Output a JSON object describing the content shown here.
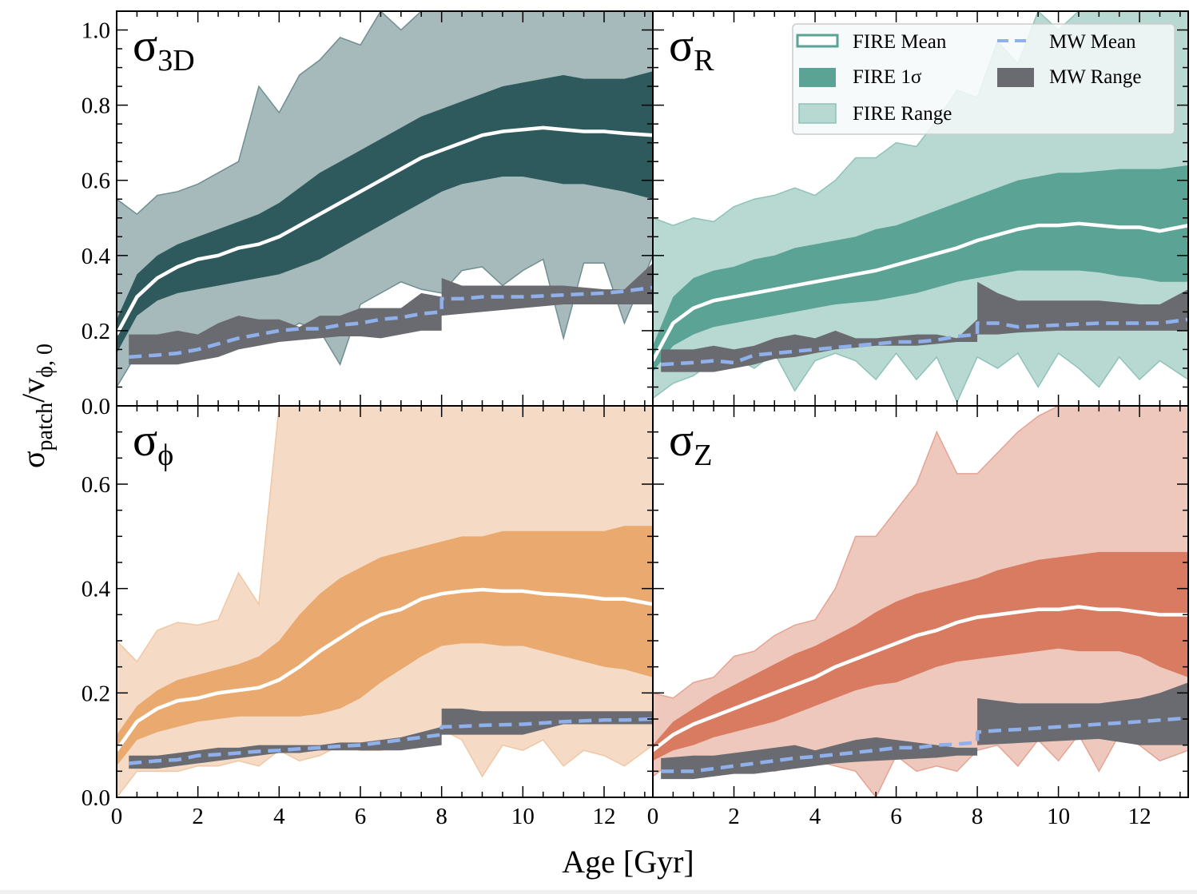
{
  "figure": {
    "xlabel": "Age [Gyr]",
    "ylabel_main": "σ",
    "ylabel_sub": "patch",
    "ylabel_rest": "/v",
    "ylabel_rest_sub": "ϕ, 0"
  },
  "legend": {
    "items": [
      {
        "key": "fire_mean",
        "label": "FIRE Mean"
      },
      {
        "key": "fire_1sigma",
        "label": "FIRE 1σ"
      },
      {
        "key": "fire_range",
        "label": "FIRE Range"
      },
      {
        "key": "mw_mean",
        "label": "MW Mean"
      },
      {
        "key": "mw_range",
        "label": "MW Range"
      }
    ],
    "location": "upper-right of σR panel"
  },
  "colors": {
    "mw_range": "#6a6b70",
    "mw_mean": "#8fb0ea",
    "fire_mean": "#ffffff"
  },
  "chart_data": [
    {
      "type": "area",
      "panel": "sigma_3D",
      "title": "σ",
      "title_sub": "3D",
      "xlim": [
        0,
        13.2
      ],
      "ylim": [
        0,
        1.05
      ],
      "xticks": [
        0,
        2,
        4,
        6,
        8,
        10,
        12
      ],
      "yticks": [
        0.0,
        0.2,
        0.4,
        0.6,
        0.8,
        1.0
      ],
      "ytick_labels": [
        "0.0",
        "0.2",
        "0.4",
        "0.6",
        "0.8",
        "1.0"
      ],
      "colors": {
        "range": "#a6b9bb",
        "range_edge": "#6f8f91",
        "sigma": "#2e5a5d"
      },
      "x": [
        0.0,
        0.5,
        1.0,
        1.5,
        2.0,
        2.5,
        3.0,
        3.5,
        4.0,
        4.5,
        5.0,
        5.5,
        6.0,
        6.5,
        7.0,
        7.5,
        8.0,
        8.5,
        9.0,
        9.5,
        10.0,
        10.5,
        11.0,
        11.5,
        12.0,
        12.5,
        13.2
      ],
      "fire_mean": [
        0.19,
        0.29,
        0.34,
        0.37,
        0.39,
        0.4,
        0.42,
        0.43,
        0.45,
        0.48,
        0.51,
        0.54,
        0.57,
        0.6,
        0.63,
        0.66,
        0.68,
        0.7,
        0.72,
        0.73,
        0.735,
        0.74,
        0.735,
        0.73,
        0.73,
        0.725,
        0.72
      ],
      "fire_lo": [
        0.14,
        0.24,
        0.28,
        0.3,
        0.31,
        0.32,
        0.33,
        0.34,
        0.35,
        0.37,
        0.39,
        0.42,
        0.45,
        0.48,
        0.51,
        0.54,
        0.57,
        0.59,
        0.6,
        0.61,
        0.61,
        0.6,
        0.59,
        0.59,
        0.58,
        0.57,
        0.55
      ],
      "fire_hi": [
        0.23,
        0.35,
        0.4,
        0.43,
        0.45,
        0.47,
        0.49,
        0.51,
        0.54,
        0.58,
        0.62,
        0.65,
        0.68,
        0.71,
        0.74,
        0.77,
        0.79,
        0.81,
        0.83,
        0.85,
        0.86,
        0.87,
        0.88,
        0.87,
        0.87,
        0.87,
        0.89
      ],
      "range_lo": [
        0.05,
        0.14,
        0.15,
        0.16,
        0.17,
        0.17,
        0.18,
        0.19,
        0.19,
        0.22,
        0.2,
        0.11,
        0.27,
        0.3,
        0.33,
        0.31,
        0.3,
        0.36,
        0.37,
        0.32,
        0.36,
        0.39,
        0.18,
        0.38,
        0.38,
        0.22,
        0.4
      ],
      "range_hi": [
        0.55,
        0.51,
        0.56,
        0.57,
        0.59,
        0.62,
        0.65,
        0.85,
        0.78,
        0.88,
        0.92,
        0.98,
        0.96,
        1.05,
        1.0,
        1.05,
        1.05,
        1.05,
        1.05,
        1.05,
        1.05,
        1.05,
        1.05,
        1.05,
        1.05,
        1.05,
        1.05
      ],
      "mw_x": [
        0.3,
        1.0,
        1.5,
        2.0,
        2.5,
        3.0,
        3.5,
        4.0,
        4.5,
        5.0,
        5.5,
        6.0,
        6.5,
        7.0,
        7.5,
        8.0,
        8.0,
        8.5,
        9.0,
        10.0,
        11.0,
        12.0,
        12.5,
        13.2
      ],
      "mw_mean": [
        0.13,
        0.135,
        0.14,
        0.15,
        0.165,
        0.18,
        0.19,
        0.2,
        0.205,
        0.205,
        0.215,
        0.22,
        0.23,
        0.235,
        0.245,
        0.25,
        0.285,
        0.285,
        0.29,
        0.29,
        0.295,
        0.3,
        0.305,
        0.315
      ],
      "mw_lo": [
        0.11,
        0.11,
        0.11,
        0.12,
        0.13,
        0.15,
        0.16,
        0.17,
        0.175,
        0.18,
        0.185,
        0.185,
        0.18,
        0.19,
        0.2,
        0.2,
        0.24,
        0.245,
        0.25,
        0.26,
        0.27,
        0.27,
        0.27,
        0.27
      ],
      "mw_hi": [
        0.19,
        0.19,
        0.2,
        0.19,
        0.22,
        0.24,
        0.23,
        0.23,
        0.21,
        0.24,
        0.24,
        0.26,
        0.26,
        0.26,
        0.3,
        0.29,
        0.34,
        0.32,
        0.32,
        0.32,
        0.32,
        0.31,
        0.31,
        0.38
      ]
    },
    {
      "type": "area",
      "panel": "sigma_R",
      "title": "σ",
      "title_sub": "R",
      "xlim": [
        0,
        13.2
      ],
      "ylim": [
        0,
        1.05
      ],
      "xticks": [
        0,
        2,
        4,
        6,
        8,
        10,
        12
      ],
      "yticks": [
        0.0,
        0.2,
        0.4,
        0.6,
        0.8,
        1.0
      ],
      "colors": {
        "range": "#b8d8d2",
        "range_edge": "#8fc2b8",
        "sigma": "#5ba395"
      },
      "x": [
        0.0,
        0.5,
        1.0,
        1.5,
        2.0,
        2.5,
        3.0,
        3.5,
        4.0,
        4.5,
        5.0,
        5.5,
        6.0,
        6.5,
        7.0,
        7.5,
        8.0,
        8.5,
        9.0,
        9.5,
        10.0,
        10.5,
        11.0,
        11.5,
        12.0,
        12.5,
        13.2
      ],
      "fire_mean": [
        0.12,
        0.22,
        0.26,
        0.28,
        0.29,
        0.3,
        0.31,
        0.32,
        0.33,
        0.34,
        0.35,
        0.36,
        0.375,
        0.39,
        0.405,
        0.42,
        0.44,
        0.455,
        0.47,
        0.48,
        0.48,
        0.485,
        0.48,
        0.475,
        0.475,
        0.465,
        0.48
      ],
      "fire_lo": [
        0.09,
        0.16,
        0.19,
        0.21,
        0.22,
        0.23,
        0.24,
        0.25,
        0.26,
        0.27,
        0.275,
        0.28,
        0.29,
        0.3,
        0.315,
        0.33,
        0.34,
        0.35,
        0.36,
        0.36,
        0.36,
        0.36,
        0.355,
        0.345,
        0.34,
        0.33,
        0.33
      ],
      "fire_hi": [
        0.16,
        0.29,
        0.34,
        0.36,
        0.37,
        0.39,
        0.4,
        0.42,
        0.43,
        0.44,
        0.45,
        0.47,
        0.48,
        0.5,
        0.52,
        0.54,
        0.56,
        0.58,
        0.6,
        0.61,
        0.62,
        0.62,
        0.625,
        0.63,
        0.63,
        0.63,
        0.64
      ],
      "range_lo": [
        0.02,
        0.06,
        0.08,
        0.12,
        0.13,
        0.1,
        0.14,
        0.04,
        0.12,
        0.14,
        0.12,
        0.07,
        0.14,
        0.07,
        0.13,
        0.01,
        0.13,
        0.1,
        0.14,
        0.05,
        0.14,
        0.1,
        0.05,
        0.13,
        0.07,
        0.12,
        0.07
      ],
      "range_hi": [
        0.5,
        0.48,
        0.5,
        0.49,
        0.53,
        0.55,
        0.56,
        0.58,
        0.56,
        0.6,
        0.66,
        0.66,
        0.7,
        0.69,
        0.76,
        0.84,
        0.82,
        0.97,
        0.91,
        1.05,
        1.0,
        1.05,
        1.05,
        1.05,
        1.05,
        1.05,
        1.05
      ],
      "mw_x": [
        0.2,
        1.0,
        1.5,
        2.0,
        2.5,
        3.0,
        3.5,
        4.0,
        4.5,
        5.0,
        5.5,
        6.0,
        6.5,
        7.0,
        7.5,
        8.0,
        8.0,
        8.5,
        9.0,
        10.0,
        11.0,
        12.0,
        12.5,
        13.2
      ],
      "mw_mean": [
        0.11,
        0.115,
        0.12,
        0.115,
        0.135,
        0.14,
        0.145,
        0.15,
        0.155,
        0.16,
        0.165,
        0.17,
        0.17,
        0.175,
        0.185,
        0.19,
        0.22,
        0.22,
        0.21,
        0.215,
        0.22,
        0.22,
        0.22,
        0.23
      ],
      "mw_lo": [
        0.09,
        0.09,
        0.09,
        0.1,
        0.11,
        0.125,
        0.13,
        0.14,
        0.15,
        0.155,
        0.16,
        0.16,
        0.16,
        0.165,
        0.17,
        0.17,
        0.19,
        0.19,
        0.195,
        0.2,
        0.2,
        0.2,
        0.2,
        0.2
      ],
      "mw_hi": [
        0.15,
        0.15,
        0.16,
        0.15,
        0.16,
        0.18,
        0.19,
        0.18,
        0.2,
        0.18,
        0.18,
        0.185,
        0.19,
        0.19,
        0.18,
        0.23,
        0.33,
        0.3,
        0.28,
        0.28,
        0.28,
        0.27,
        0.27,
        0.31
      ]
    },
    {
      "type": "area",
      "panel": "sigma_phi",
      "title": "σ",
      "title_sub": "ϕ",
      "xlim": [
        0,
        13.2
      ],
      "ylim": [
        0,
        0.75
      ],
      "xticks": [
        0,
        2,
        4,
        6,
        8,
        10,
        12
      ],
      "xtick_labels": [
        "0",
        "2",
        "4",
        "6",
        "8",
        "10",
        "12"
      ],
      "yticks": [
        0.0,
        0.2,
        0.4,
        0.6
      ],
      "ytick_labels": [
        "0.0",
        "0.2",
        "0.4",
        "0.6"
      ],
      "colors": {
        "range": "#f5dbc5",
        "range_edge": "#f0c7a5",
        "sigma": "#e9a96f"
      },
      "x": [
        0.0,
        0.5,
        1.0,
        1.5,
        2.0,
        2.5,
        3.0,
        3.5,
        4.0,
        4.5,
        5.0,
        5.5,
        6.0,
        6.5,
        7.0,
        7.5,
        8.0,
        8.5,
        9.0,
        9.5,
        10.0,
        10.5,
        11.0,
        11.5,
        12.0,
        12.5,
        13.2
      ],
      "fire_mean": [
        0.09,
        0.145,
        0.17,
        0.185,
        0.19,
        0.2,
        0.205,
        0.21,
        0.225,
        0.25,
        0.28,
        0.305,
        0.33,
        0.35,
        0.36,
        0.38,
        0.39,
        0.395,
        0.398,
        0.395,
        0.395,
        0.39,
        0.388,
        0.385,
        0.38,
        0.38,
        0.37
      ],
      "fire_lo": [
        0.06,
        0.11,
        0.125,
        0.135,
        0.145,
        0.15,
        0.155,
        0.155,
        0.155,
        0.155,
        0.16,
        0.17,
        0.19,
        0.22,
        0.245,
        0.27,
        0.29,
        0.295,
        0.295,
        0.29,
        0.29,
        0.28,
        0.27,
        0.26,
        0.25,
        0.245,
        0.23
      ],
      "fire_hi": [
        0.12,
        0.175,
        0.205,
        0.225,
        0.235,
        0.245,
        0.255,
        0.27,
        0.3,
        0.35,
        0.39,
        0.42,
        0.44,
        0.46,
        0.47,
        0.48,
        0.49,
        0.5,
        0.5,
        0.51,
        0.51,
        0.51,
        0.51,
        0.51,
        0.51,
        0.52,
        0.52
      ],
      "range_lo": [
        0.0,
        0.05,
        0.05,
        0.05,
        0.06,
        0.06,
        0.07,
        0.06,
        0.09,
        0.07,
        0.08,
        0.1,
        0.09,
        0.09,
        0.1,
        0.11,
        0.13,
        0.11,
        0.04,
        0.1,
        0.09,
        0.11,
        0.06,
        0.09,
        0.08,
        0.06,
        0.1
      ],
      "range_hi": [
        0.3,
        0.26,
        0.32,
        0.335,
        0.33,
        0.34,
        0.43,
        0.37,
        0.75,
        0.75,
        0.75,
        0.75,
        0.75,
        0.75,
        0.75,
        0.75,
        0.75,
        0.75,
        0.75,
        0.75,
        0.75,
        0.75,
        0.75,
        0.75,
        0.75,
        0.75,
        0.75
      ],
      "mw_x": [
        0.3,
        1.0,
        1.5,
        2.0,
        2.5,
        3.0,
        3.5,
        4.0,
        4.5,
        5.0,
        5.5,
        6.0,
        6.5,
        7.0,
        7.5,
        8.0,
        8.0,
        8.5,
        9.0,
        10.0,
        11.0,
        12.0,
        12.5,
        13.2
      ],
      "mw_mean": [
        0.065,
        0.07,
        0.072,
        0.08,
        0.082,
        0.085,
        0.088,
        0.09,
        0.093,
        0.095,
        0.098,
        0.1,
        0.105,
        0.11,
        0.115,
        0.12,
        0.135,
        0.136,
        0.138,
        0.14,
        0.145,
        0.148,
        0.148,
        0.15
      ],
      "mw_lo": [
        0.055,
        0.055,
        0.06,
        0.065,
        0.07,
        0.075,
        0.08,
        0.085,
        0.085,
        0.09,
        0.09,
        0.09,
        0.09,
        0.09,
        0.095,
        0.1,
        0.12,
        0.12,
        0.12,
        0.12,
        0.14,
        0.14,
        0.14,
        0.14
      ],
      "mw_hi": [
        0.08,
        0.08,
        0.085,
        0.09,
        0.095,
        0.095,
        0.1,
        0.1,
        0.1,
        0.1,
        0.105,
        0.105,
        0.11,
        0.115,
        0.125,
        0.135,
        0.17,
        0.17,
        0.165,
        0.165,
        0.165,
        0.165,
        0.165,
        0.165
      ]
    },
    {
      "type": "area",
      "panel": "sigma_Z",
      "title": "σ",
      "title_sub": "Z",
      "xlim": [
        0,
        13.2
      ],
      "ylim": [
        0,
        0.75
      ],
      "xticks": [
        0,
        2,
        4,
        6,
        8,
        10,
        12
      ],
      "xtick_labels": [
        "0",
        "2",
        "4",
        "6",
        "8",
        "10",
        "12"
      ],
      "yticks": [
        0.0,
        0.2,
        0.4,
        0.6
      ],
      "colors": {
        "range": "#efc8bd",
        "range_edge": "#e5a393",
        "sigma": "#d97b61"
      },
      "x": [
        0.0,
        0.5,
        1.0,
        1.5,
        2.0,
        2.5,
        3.0,
        3.5,
        4.0,
        4.5,
        5.0,
        5.5,
        6.0,
        6.5,
        7.0,
        7.5,
        8.0,
        8.5,
        9.0,
        9.5,
        10.0,
        10.5,
        11.0,
        11.5,
        12.0,
        12.5,
        13.2
      ],
      "fire_mean": [
        0.09,
        0.12,
        0.14,
        0.155,
        0.17,
        0.185,
        0.2,
        0.215,
        0.23,
        0.25,
        0.265,
        0.28,
        0.295,
        0.31,
        0.32,
        0.335,
        0.345,
        0.35,
        0.355,
        0.36,
        0.36,
        0.365,
        0.36,
        0.36,
        0.355,
        0.35,
        0.35
      ],
      "fire_lo": [
        0.07,
        0.09,
        0.1,
        0.115,
        0.125,
        0.135,
        0.145,
        0.16,
        0.175,
        0.19,
        0.205,
        0.215,
        0.22,
        0.235,
        0.25,
        0.26,
        0.265,
        0.27,
        0.275,
        0.28,
        0.285,
        0.28,
        0.28,
        0.28,
        0.27,
        0.25,
        0.23
      ],
      "fire_hi": [
        0.1,
        0.145,
        0.17,
        0.195,
        0.215,
        0.235,
        0.255,
        0.275,
        0.29,
        0.31,
        0.33,
        0.355,
        0.375,
        0.39,
        0.4,
        0.41,
        0.42,
        0.435,
        0.445,
        0.455,
        0.46,
        0.465,
        0.47,
        0.47,
        0.47,
        0.47,
        0.47
      ],
      "range_lo": [
        0.04,
        0.07,
        0.06,
        0.05,
        0.06,
        0.06,
        0.05,
        0.06,
        0.07,
        0.06,
        0.05,
        0.0,
        0.08,
        0.05,
        0.06,
        0.05,
        0.09,
        0.1,
        0.06,
        0.11,
        0.07,
        0.12,
        0.05,
        0.12,
        0.1,
        0.07,
        0.09
      ],
      "range_hi": [
        0.2,
        0.19,
        0.22,
        0.23,
        0.27,
        0.28,
        0.31,
        0.33,
        0.34,
        0.4,
        0.5,
        0.5,
        0.55,
        0.6,
        0.7,
        0.62,
        0.62,
        0.66,
        0.7,
        0.73,
        0.75,
        0.75,
        0.75,
        0.75,
        0.75,
        0.75,
        0.75
      ],
      "mw_x": [
        0.2,
        1.0,
        1.5,
        2.0,
        2.5,
        3.0,
        3.5,
        4.0,
        4.5,
        5.0,
        5.5,
        6.0,
        6.5,
        7.0,
        7.5,
        8.0,
        8.0,
        8.5,
        9.0,
        10.0,
        11.0,
        12.0,
        12.5,
        13.2
      ],
      "mw_mean": [
        0.05,
        0.05,
        0.055,
        0.06,
        0.065,
        0.07,
        0.075,
        0.078,
        0.082,
        0.086,
        0.09,
        0.095,
        0.095,
        0.1,
        0.102,
        0.105,
        0.125,
        0.128,
        0.13,
        0.135,
        0.14,
        0.145,
        0.148,
        0.152
      ],
      "mw_lo": [
        0.035,
        0.035,
        0.04,
        0.045,
        0.045,
        0.05,
        0.055,
        0.06,
        0.065,
        0.068,
        0.07,
        0.072,
        0.074,
        0.076,
        0.08,
        0.08,
        0.1,
        0.102,
        0.104,
        0.108,
        0.112,
        0.1,
        0.1,
        0.1
      ],
      "mw_hi": [
        0.075,
        0.08,
        0.08,
        0.085,
        0.09,
        0.095,
        0.1,
        0.09,
        0.1,
        0.11,
        0.115,
        0.11,
        0.105,
        0.1,
        0.095,
        0.095,
        0.19,
        0.185,
        0.18,
        0.18,
        0.18,
        0.19,
        0.2,
        0.22
      ]
    }
  ]
}
